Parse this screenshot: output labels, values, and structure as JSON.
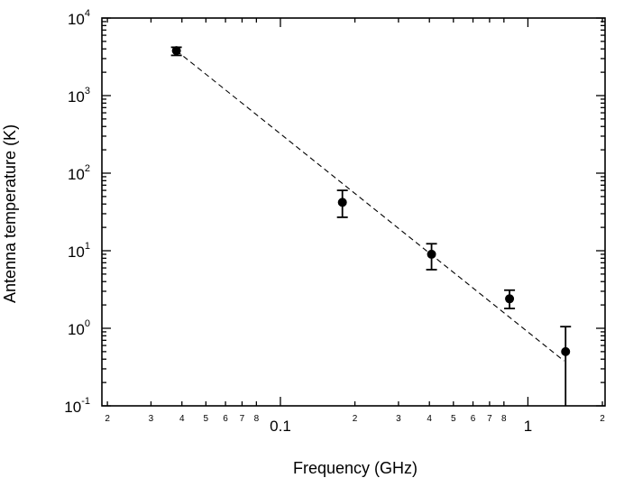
{
  "chart_data": {
    "type": "scatter",
    "title": "",
    "xlabel": "Frequency (GHz)",
    "ylabel": "Antenna temperature (K)",
    "xscale": "log",
    "yscale": "log",
    "xlim": [
      0.019,
      2.05
    ],
    "ylim": [
      0.1,
      10000
    ],
    "grid": false,
    "legend": "none",
    "x_major_ticks": [
      {
        "value": 0.1,
        "label": "0.1"
      },
      {
        "value": 1,
        "label": "1"
      }
    ],
    "x_minor_ticks": [
      {
        "value": 0.02,
        "label": "2"
      },
      {
        "value": 0.03,
        "label": "3"
      },
      {
        "value": 0.04,
        "label": "4"
      },
      {
        "value": 0.05,
        "label": "5"
      },
      {
        "value": 0.06,
        "label": "6"
      },
      {
        "value": 0.07,
        "label": "7"
      },
      {
        "value": 0.08,
        "label": "8"
      },
      {
        "value": 0.2,
        "label": "2"
      },
      {
        "value": 0.3,
        "label": "3"
      },
      {
        "value": 0.4,
        "label": "4"
      },
      {
        "value": 0.5,
        "label": "5"
      },
      {
        "value": 0.6,
        "label": "6"
      },
      {
        "value": 0.7,
        "label": "7"
      },
      {
        "value": 0.8,
        "label": "8"
      },
      {
        "value": 2,
        "label": "2"
      }
    ],
    "y_ticks": [
      {
        "value": 0.1,
        "base": "10",
        "exp": "-1"
      },
      {
        "value": 1,
        "base": "10",
        "exp": "0"
      },
      {
        "value": 10,
        "base": "10",
        "exp": "1"
      },
      {
        "value": 100,
        "base": "10",
        "exp": "2"
      },
      {
        "value": 1000,
        "base": "10",
        "exp": "3"
      },
      {
        "value": 10000,
        "base": "10",
        "exp": "4"
      }
    ],
    "series": [
      {
        "type": "scatter",
        "points": [
          {
            "x": 0.038,
            "y": 3800,
            "ylow": 3300,
            "yhigh": 4200
          },
          {
            "x": 0.178,
            "y": 42,
            "ylow": 27,
            "yhigh": 60
          },
          {
            "x": 0.408,
            "y": 9,
            "ylow": 5.7,
            "yhigh": 12.3
          },
          {
            "x": 0.843,
            "y": 2.4,
            "ylow": 1.8,
            "yhigh": 3.1
          },
          {
            "x": 1.42,
            "y": 0.5,
            "ylow": 0.1,
            "yhigh": 1.05
          }
        ]
      },
      {
        "type": "line",
        "style": "dashed",
        "points": [
          {
            "x": 0.038,
            "y": 3800
          },
          {
            "x": 1.4,
            "y": 0.38
          }
        ]
      }
    ]
  }
}
